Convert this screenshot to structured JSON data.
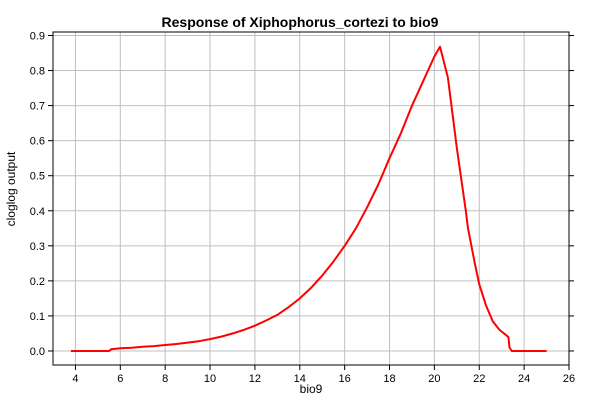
{
  "chart_data": {
    "type": "line",
    "title": "Response of Xiphophorus_cortezi to bio9",
    "xlabel": "bio9",
    "ylabel": "cloglog output",
    "xlim": [
      3,
      26
    ],
    "ylim": [
      -0.04,
      0.91
    ],
    "xticks": [
      4,
      6,
      8,
      10,
      12,
      14,
      16,
      18,
      20,
      22,
      24,
      26
    ],
    "yticks": [
      0.0,
      0.1,
      0.2,
      0.3,
      0.4,
      0.5,
      0.6,
      0.7,
      0.8,
      0.9
    ],
    "ytick_labels": [
      "0.0",
      "0.1",
      "0.2",
      "0.3",
      "0.4",
      "0.5",
      "0.6",
      "0.7",
      "0.8",
      "0.9"
    ],
    "grid": true,
    "series": [
      {
        "color": "#ff0000",
        "x": [
          3.8,
          5.3,
          5.5,
          5.6,
          6.0,
          6.5,
          7.0,
          7.5,
          8.0,
          8.5,
          9.0,
          9.5,
          10.0,
          10.5,
          11.0,
          11.5,
          12.0,
          12.5,
          13.0,
          13.5,
          14.0,
          14.5,
          15.0,
          15.5,
          16.0,
          16.5,
          17.0,
          17.5,
          18.0,
          18.5,
          19.0,
          19.5,
          20.0,
          20.25,
          20.4,
          20.6,
          21.0,
          21.4,
          21.5,
          21.8,
          22.0,
          22.3,
          22.6,
          22.9,
          23.2,
          23.3,
          23.35,
          23.45,
          25.0
        ],
        "y": [
          0.0,
          0.0,
          0.0,
          0.005,
          0.008,
          0.009,
          0.012,
          0.014,
          0.017,
          0.02,
          0.024,
          0.028,
          0.034,
          0.041,
          0.05,
          0.06,
          0.072,
          0.087,
          0.103,
          0.125,
          0.15,
          0.18,
          0.215,
          0.255,
          0.3,
          0.35,
          0.41,
          0.475,
          0.55,
          0.62,
          0.7,
          0.77,
          0.84,
          0.868,
          0.83,
          0.78,
          0.58,
          0.4,
          0.35,
          0.25,
          0.19,
          0.13,
          0.085,
          0.06,
          0.045,
          0.04,
          0.01,
          0.0,
          0.0
        ]
      }
    ]
  }
}
